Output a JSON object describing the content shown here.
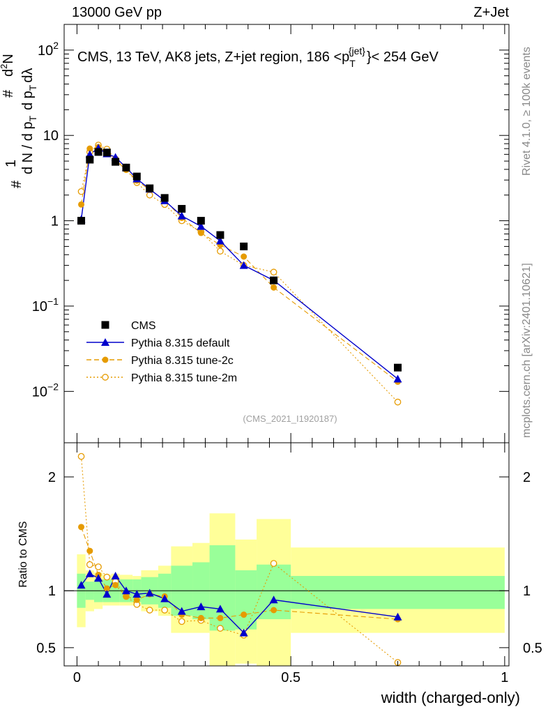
{
  "header": {
    "left_label": "13000 GeV pp",
    "right_label": "Z+Jet"
  },
  "side_labels": {
    "rivet": "Rivet 4.1.0, ≥ 100k events",
    "mcplots": "mcplots.cern.ch [arXiv:2401.10621]"
  },
  "watermark": "(CMS_2021_I1920187)",
  "colors": {
    "cms": "#000000",
    "default": "#0000cc",
    "tune2c": "#e69b00",
    "tune2m": "#e69b00",
    "band_inner": "#99ff99",
    "band_outer": "#ffff99"
  },
  "chart_data": [
    {
      "type": "line",
      "scale": "log",
      "title": "CMS, 13 TeV, AK8 jets, Z+jet region, 186 <p_T^jet> < 254 GeV",
      "title_parts": {
        "main": "CMS, 13 TeV, AK8 jets, Z+jet region, 186 <p",
        "sub": "T",
        "sup": "{jet}",
        "tail": "}< 254 GeV"
      },
      "ylabel_parts": {
        "numerator": "d²N",
        "denominator": "d N / d p_T d p_T dλ",
        "prefix": "1",
        "hash": "#"
      },
      "ylabel_text": {
        "hash1": "#",
        "one": "1",
        "dN": "d N / d p",
        "T1": "T",
        "hash2": "#",
        "dp": "d p",
        "T2": "T",
        "dl": "dλ",
        "d2N": "d",
        "two": "2",
        "Nn": "N"
      },
      "xlim": [
        -0.03,
        1.01
      ],
      "ylim": [
        0.0025,
        200
      ],
      "y_ticks": [
        {
          "v": 0.01,
          "base": "10",
          "exp": "−2"
        },
        {
          "v": 0.1,
          "base": "10",
          "exp": "−1"
        },
        {
          "v": 1,
          "base": "1",
          "exp": ""
        },
        {
          "v": 10,
          "base": "10",
          "exp": ""
        },
        {
          "v": 100,
          "base": "10",
          "exp": "2"
        }
      ],
      "legend": [
        {
          "label": "CMS",
          "series": "cms"
        },
        {
          "label": "Pythia 8.315 default",
          "series": "default"
        },
        {
          "label": "Pythia 8.315 tune-2c",
          "series": "tune2c"
        },
        {
          "label": "Pythia 8.315 tune-2m",
          "series": "tune2m"
        }
      ],
      "legend_placement": "bottom-left",
      "x": [
        0.01,
        0.03,
        0.05,
        0.07,
        0.09,
        0.115,
        0.14,
        0.17,
        0.205,
        0.245,
        0.29,
        0.335,
        0.39,
        0.46,
        0.75
      ],
      "series": [
        {
          "name": "CMS",
          "key": "cms",
          "values": [
            1.0,
            5.2,
            6.4,
            6.3,
            4.9,
            4.2,
            3.3,
            2.4,
            1.85,
            1.38,
            1.0,
            0.68,
            0.5,
            0.2,
            0.019
          ]
        },
        {
          "name": "Pythia 8.315 default",
          "key": "default",
          "values": [
            1.04,
            6.0,
            7.1,
            6.1,
            5.55,
            4.2,
            3.1,
            2.35,
            1.72,
            1.14,
            0.86,
            0.58,
            0.3,
            0.2,
            0.014
          ]
        },
        {
          "name": "Pythia 8.315 tune-2c",
          "key": "tune2c",
          "values": [
            1.55,
            7.0,
            7.3,
            6.3,
            5.1,
            3.95,
            2.95,
            2.3,
            1.75,
            1.08,
            0.72,
            0.52,
            0.38,
            0.165,
            0.013
          ]
        },
        {
          "name": "Pythia 8.315 tune-2m",
          "key": "tune2m",
          "values": [
            2.2,
            6.4,
            7.7,
            6.9,
            5.3,
            4.0,
            2.8,
            2.0,
            1.55,
            1.0,
            0.74,
            0.44,
            0.3,
            0.25,
            0.0075
          ]
        }
      ]
    },
    {
      "type": "line",
      "scale": "linear",
      "ylabel": "Ratio to CMS",
      "xlabel": "width (charged-only)",
      "xlim": [
        -0.03,
        1.01
      ],
      "ylim": [
        0.34,
        2.3
      ],
      "y_ticks": [
        0.5,
        1,
        2
      ],
      "x_ticks": [
        {
          "v": 0,
          "label": "0"
        },
        {
          "v": 0.5,
          "label": "0.5"
        },
        {
          "v": 1,
          "label": "1"
        }
      ],
      "reference_line": 1,
      "band_edges": [
        0,
        0.02,
        0.04,
        0.06,
        0.08,
        0.1,
        0.13,
        0.15,
        0.19,
        0.22,
        0.27,
        0.31,
        0.37,
        0.42,
        0.5,
        1.0
      ],
      "band_inner": [
        [
          0.85,
          1.15
        ],
        [
          0.92,
          1.08
        ],
        [
          0.9,
          1.1
        ],
        [
          0.9,
          1.1
        ],
        [
          0.9,
          1.1
        ],
        [
          0.9,
          1.1
        ],
        [
          0.9,
          1.1
        ],
        [
          0.88,
          1.12
        ],
        [
          0.85,
          1.15
        ],
        [
          0.78,
          1.22
        ],
        [
          0.75,
          1.25
        ],
        [
          0.65,
          1.4
        ],
        [
          0.66,
          1.18
        ],
        [
          0.75,
          1.23
        ],
        [
          0.84,
          1.13
        ]
      ],
      "band_outer": [
        [
          0.68,
          1.32
        ],
        [
          0.82,
          1.18
        ],
        [
          0.84,
          1.16
        ],
        [
          0.87,
          1.14
        ],
        [
          0.87,
          1.15
        ],
        [
          0.87,
          1.14
        ],
        [
          0.87,
          1.13
        ],
        [
          0.82,
          1.18
        ],
        [
          0.78,
          1.22
        ],
        [
          0.63,
          1.39
        ],
        [
          0.63,
          1.42
        ],
        [
          0.34,
          1.68
        ],
        [
          0.36,
          1.45
        ],
        [
          0.34,
          1.63
        ],
        [
          0.63,
          1.38
        ]
      ],
      "series": [
        {
          "name": "Pythia 8.315 default",
          "key": "default",
          "values": [
            1.05,
            1.15,
            1.11,
            0.97,
            1.13,
            1.0,
            0.97,
            0.98,
            0.93,
            0.82,
            0.86,
            0.84,
            0.63,
            0.92,
            0.77
          ]
        },
        {
          "name": "Pythia 8.315 tune-2c",
          "key": "tune2c",
          "values": [
            1.56,
            1.35,
            1.14,
            1.02,
            1.05,
            0.95,
            0.92,
            0.97,
            0.95,
            0.79,
            0.76,
            0.76,
            0.79,
            0.83,
            0.75
          ]
        },
        {
          "name": "Pythia 8.315 tune-2m",
          "key": "tune2m",
          "values": [
            2.18,
            1.23,
            1.21,
            1.12,
            1.08,
            0.95,
            0.88,
            0.83,
            0.83,
            0.73,
            0.74,
            0.67,
            0.61,
            1.24,
            0.37
          ]
        }
      ]
    }
  ]
}
